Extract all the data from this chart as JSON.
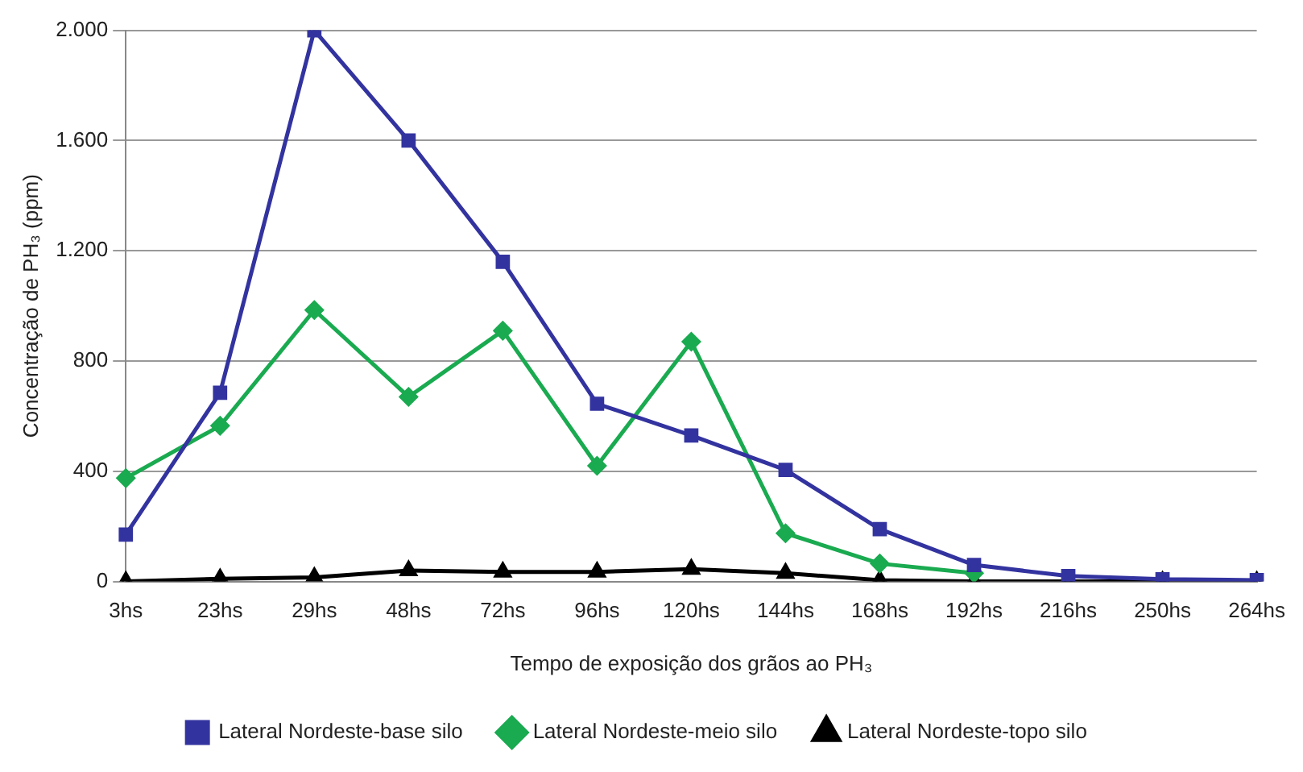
{
  "chart_data": {
    "type": "line",
    "xlabel": "Tempo de exposição dos grãos ao PH₃",
    "ylabel": "Concentração de PH₃ (ppm)",
    "categories": [
      "3hs",
      "23hs",
      "29hs",
      "48hs",
      "72hs",
      "96hs",
      "120hs",
      "144hs",
      "168hs",
      "192hs",
      "216hs",
      "250hs",
      "264hs"
    ],
    "series": [
      {
        "name": "Lateral Nordeste-base silo",
        "color": "#3333a0",
        "marker": "square",
        "values": [
          170,
          685,
          2000,
          1600,
          1160,
          645,
          530,
          405,
          190,
          60,
          20,
          8,
          5
        ]
      },
      {
        "name": "Lateral Nordeste-meio silo",
        "color": "#1aaa50",
        "marker": "diamond",
        "values": [
          375,
          565,
          985,
          670,
          910,
          420,
          870,
          175,
          65,
          30,
          null,
          null,
          null
        ]
      },
      {
        "name": "Lateral Nordeste-topo silo",
        "color": "#000000",
        "marker": "triangle",
        "values": [
          0,
          10,
          15,
          40,
          35,
          35,
          45,
          30,
          5,
          0,
          0,
          0,
          0
        ]
      }
    ],
    "ylim": [
      0,
      2000
    ],
    "yticks": [
      0,
      {
        "value": 400,
        "label": "400"
      },
      {
        "value": 800,
        "label": "800"
      },
      {
        "value": 1200,
        "label": "1.200"
      },
      {
        "value": 1600,
        "label": "1.600"
      },
      {
        "value": 2000,
        "label": "2.000"
      }
    ],
    "grid": "y",
    "legend": "bottom",
    "line_style": "solid"
  }
}
